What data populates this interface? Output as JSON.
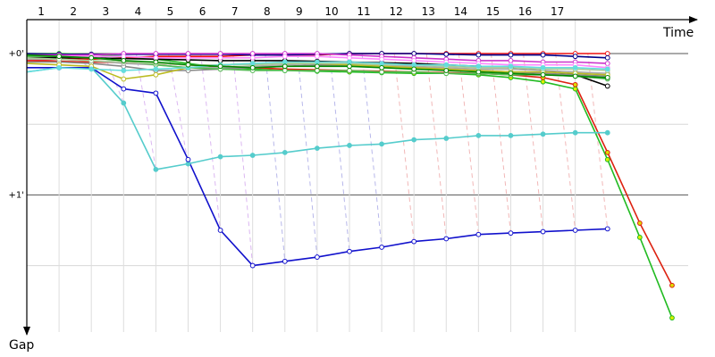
{
  "chart_data": {
    "type": "line",
    "x_axis_label": "Time",
    "y_axis_label": "Gap",
    "laps": [
      "1",
      "2",
      "3",
      "4",
      "5",
      "6",
      "7",
      "8",
      "9",
      "10",
      "11",
      "12",
      "13",
      "14",
      "15",
      "16",
      "17"
    ],
    "y_ticks": [
      {
        "value": 0,
        "label": "+0'"
      },
      {
        "value": 1,
        "label": "+1'"
      }
    ],
    "y_range": [
      -0.24,
      1.97
    ],
    "x_range": [
      0,
      20.5
    ],
    "grid": true,
    "legend": "none",
    "series": [
      {
        "color": "#22bb22",
        "marker": "#ddee00",
        "x": [
          0.0,
          1.0,
          2.0,
          3.0,
          4.0,
          5.0,
          6.0,
          7.0,
          8.0,
          9.0,
          10.0,
          11.0,
          12.0,
          13.0,
          14.0,
          15.0,
          16.0,
          17.0,
          18.0,
          19.0,
          20.0
        ],
        "y": [
          0.0,
          0.0,
          0.005,
          0.02,
          0.04,
          0.07,
          0.1,
          0.11,
          0.12,
          0.125,
          0.13,
          0.135,
          0.14,
          0.14,
          0.15,
          0.17,
          0.2,
          0.25,
          0.75,
          1.3,
          1.87
        ]
      },
      {
        "color": "#dd2211",
        "marker": "#dddd00",
        "x": [
          0.0,
          1.0,
          2.0,
          3.0,
          4.0,
          5.0,
          6.0,
          7.0,
          8.0,
          9.0,
          10.0,
          11.0,
          12.0,
          13.0,
          14.0,
          15.0,
          16.0,
          17.0,
          18.0,
          19.0,
          20.0
        ],
        "y": [
          0.05,
          0.055,
          0.06,
          0.065,
          0.07,
          0.08,
          0.09,
          0.1,
          0.11,
          0.115,
          0.12,
          0.125,
          0.13,
          0.135,
          0.14,
          0.15,
          0.17,
          0.22,
          0.7,
          1.2,
          1.64
        ]
      },
      {
        "color": "#55cccc",
        "marker": "#55cccc",
        "x": [
          0.0,
          1.0,
          2.0,
          3.0,
          4.0,
          5.0,
          6.0,
          7.0,
          8.0,
          9.0,
          10.0,
          11.0,
          12.0,
          13.0,
          14.0,
          15.0,
          16.0,
          17.0,
          18.0
        ],
        "y": [
          0.13,
          0.1,
          0.1,
          0.35,
          0.82,
          0.78,
          0.73,
          0.72,
          0.7,
          0.67,
          0.65,
          0.64,
          0.61,
          0.6,
          0.58,
          0.58,
          0.57,
          0.56,
          0.56
        ]
      },
      {
        "color": "#1111cc",
        "marker": "#ffffff",
        "x": [
          0.0,
          1.0,
          2.0,
          3.0,
          4.0,
          5.0,
          6.0,
          7.0,
          8.0,
          9.0,
          10.0,
          11.0,
          12.0,
          13.0,
          14.0,
          15.0,
          16.0,
          17.0,
          18.0
        ],
        "y": [
          0.1,
          0.1,
          0.1,
          0.25,
          0.28,
          0.75,
          1.25,
          1.5,
          1.47,
          1.44,
          1.4,
          1.37,
          1.33,
          1.31,
          1.28,
          1.27,
          1.26,
          1.25,
          1.24
        ]
      },
      {
        "color": "#ee1111",
        "marker": "#ffffff",
        "x": [
          0.0,
          1.0,
          2.0,
          3.0,
          4.0,
          5.0,
          6.0,
          7.0,
          8.0,
          9.0,
          10.0,
          11.0,
          12.0,
          13.0,
          14.0,
          15.0,
          16.0,
          17.0,
          18.0
        ],
        "y": [
          0.05,
          0.04,
          0.04,
          0.03,
          0.02,
          0.02,
          0.02,
          0.01,
          0.01,
          0.01,
          0.0,
          0.0,
          0.0,
          0.0,
          0.0,
          0.0,
          0.0,
          0.0,
          0.0
        ]
      },
      {
        "color": "#000088",
        "marker": "#ffffff",
        "x": [
          0.0,
          1.0,
          2.0,
          3.0,
          4.0,
          5.0,
          6.0,
          7.0,
          8.0,
          9.0,
          10.0,
          11.0,
          12.0,
          13.0,
          14.0,
          15.0,
          16.0,
          17.0,
          18.0
        ],
        "y": [
          0.0,
          0.005,
          0.005,
          0.005,
          0.005,
          0.005,
          0.005,
          0.01,
          0.01,
          0.005,
          0.0,
          0.0,
          0.0,
          0.005,
          0.01,
          0.01,
          0.01,
          0.02,
          0.03
        ]
      },
      {
        "color": "#000000",
        "marker": "#ffffff",
        "x": [
          0.0,
          1.0,
          2.0,
          3.0,
          4.0,
          5.0,
          6.0,
          7.0,
          8.0,
          9.0,
          10.0,
          11.0,
          12.0,
          13.0,
          14.0,
          15.0,
          16.0,
          17.0,
          18.0
        ],
        "y": [
          0.03,
          0.03,
          0.03,
          0.035,
          0.04,
          0.045,
          0.05,
          0.05,
          0.05,
          0.055,
          0.06,
          0.065,
          0.07,
          0.08,
          0.09,
          0.1,
          0.12,
          0.15,
          0.23
        ]
      },
      {
        "color": "#cc33cc",
        "marker": "#ffffff",
        "x": [
          0.0,
          1.0,
          2.0,
          3.0,
          4.0,
          5.0,
          6.0,
          7.0,
          8.0,
          9.0,
          10.0,
          11.0,
          12.0,
          13.0,
          14.0,
          15.0,
          16.0,
          17.0,
          18.0
        ],
        "y": [
          0.01,
          0.01,
          0.01,
          0.0,
          0.0,
          0.0,
          0.0,
          0.0,
          0.0,
          0.0,
          0.01,
          0.02,
          0.03,
          0.04,
          0.05,
          0.05,
          0.06,
          0.06,
          0.07
        ]
      },
      {
        "color": "#ff88ff",
        "marker": "#ffffff",
        "x": [
          0.0,
          1.0,
          2.0,
          3.0,
          4.0,
          5.0,
          6.0,
          7.0,
          8.0,
          9.0,
          10.0,
          11.0,
          12.0,
          13.0,
          14.0,
          15.0,
          16.0,
          17.0,
          18.0
        ],
        "y": [
          0.02,
          0.02,
          0.02,
          0.02,
          0.03,
          0.03,
          0.03,
          0.03,
          0.02,
          0.02,
          0.03,
          0.04,
          0.05,
          0.06,
          0.07,
          0.08,
          0.08,
          0.08,
          0.1
        ]
      },
      {
        "color": "#888888",
        "marker": "#ffffff",
        "x": [
          0.0,
          1.0,
          2.0,
          3.0,
          4.0,
          5.0,
          6.0,
          7.0,
          8.0,
          9.0,
          10.0,
          11.0,
          12.0,
          13.0,
          14.0,
          15.0,
          16.0,
          17.0,
          18.0
        ],
        "y": [
          0.06,
          0.06,
          0.07,
          0.09,
          0.12,
          0.12,
          0.11,
          0.1,
          0.09,
          0.08,
          0.08,
          0.09,
          0.1,
          0.11,
          0.12,
          0.13,
          0.14,
          0.15,
          0.16
        ]
      },
      {
        "color": "#aaaaaa",
        "marker": "#ffffff",
        "x": [
          0.0,
          1.0,
          2.0,
          3.0,
          4.0,
          5.0,
          6.0,
          7.0,
          8.0,
          9.0,
          10.0,
          11.0,
          12.0,
          13.0,
          14.0,
          15.0,
          16.0,
          17.0,
          18.0
        ],
        "y": [
          0.04,
          0.04,
          0.05,
          0.07,
          0.08,
          0.1,
          0.1,
          0.09,
          0.08,
          0.07,
          0.07,
          0.08,
          0.09,
          0.1,
          0.11,
          0.11,
          0.12,
          0.13,
          0.14
        ]
      },
      {
        "color": "#55bb55",
        "marker": "#ffffff",
        "x": [
          0.0,
          1.0,
          2.0,
          3.0,
          4.0,
          5.0,
          6.0,
          7.0,
          8.0,
          9.0,
          10.0,
          11.0,
          12.0,
          13.0,
          14.0,
          15.0,
          16.0,
          17.0,
          18.0
        ],
        "y": [
          0.02,
          0.02,
          0.03,
          0.05,
          0.08,
          0.1,
          0.11,
          0.12,
          0.12,
          0.12,
          0.12,
          0.13,
          0.13,
          0.14,
          0.14,
          0.15,
          0.15,
          0.16,
          0.18
        ]
      },
      {
        "color": "#bbbb22",
        "marker": "#ffffff",
        "x": [
          0.0,
          1.0,
          2.0,
          3.0,
          4.0,
          5.0,
          6.0,
          7.0,
          8.0,
          9.0,
          10.0,
          11.0,
          12.0,
          13.0,
          14.0,
          15.0,
          16.0,
          17.0,
          18.0
        ],
        "y": [
          0.07,
          0.08,
          0.09,
          0.18,
          0.15,
          0.1,
          0.08,
          0.07,
          0.07,
          0.07,
          0.08,
          0.09,
          0.1,
          0.11,
          0.12,
          0.13,
          0.13,
          0.14,
          0.15
        ]
      },
      {
        "color": "#aacc99",
        "marker": "#ffffff",
        "x": [
          0.0,
          1.0,
          2.0,
          3.0,
          4.0,
          5.0,
          6.0,
          7.0,
          8.0,
          9.0,
          10.0,
          11.0,
          12.0,
          13.0,
          14.0,
          15.0,
          16.0,
          17.0,
          18.0
        ],
        "y": [
          0.03,
          0.04,
          0.05,
          0.06,
          0.07,
          0.08,
          0.08,
          0.08,
          0.07,
          0.07,
          0.07,
          0.08,
          0.08,
          0.09,
          0.1,
          0.1,
          0.11,
          0.11,
          0.12
        ]
      },
      {
        "color": "#66dddd",
        "marker": "#66dddd",
        "x": [
          0.0,
          1.0,
          2.0,
          3.0,
          4.0,
          5.0,
          6.0,
          7.0,
          8.0,
          9.0,
          10.0,
          11.0,
          12.0,
          13.0,
          14.0,
          15.0,
          16.0,
          17.0,
          18.0
        ],
        "y": [
          0.13,
          0.1,
          0.11,
          0.12,
          0.11,
          0.1,
          0.08,
          0.07,
          0.06,
          0.06,
          0.06,
          0.07,
          0.08,
          0.08,
          0.09,
          0.09,
          0.1,
          0.1,
          0.11
        ]
      },
      {
        "color": "#008800",
        "marker": "#ffffff",
        "x": [
          0.0,
          1.0,
          2.0,
          3.0,
          4.0,
          5.0,
          6.0,
          7.0,
          8.0,
          9.0,
          10.0,
          11.0,
          12.0,
          13.0,
          14.0,
          15.0,
          16.0,
          17.0,
          18.0
        ],
        "y": [
          0.01,
          0.02,
          0.03,
          0.05,
          0.06,
          0.08,
          0.09,
          0.1,
          0.09,
          0.09,
          0.09,
          0.1,
          0.11,
          0.12,
          0.13,
          0.14,
          0.15,
          0.16,
          0.17
        ]
      }
    ]
  }
}
